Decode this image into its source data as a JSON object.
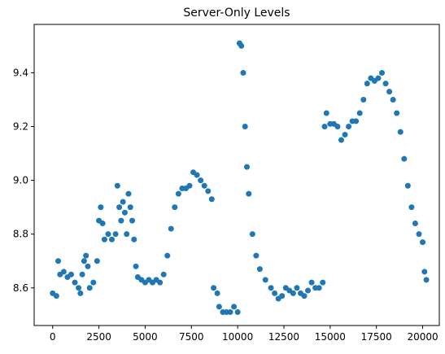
{
  "chart_data": {
    "type": "scatter",
    "title": "Server-Only Levels",
    "x": [
      0,
      200,
      300,
      400,
      600,
      800,
      1000,
      1200,
      1400,
      1500,
      1600,
      1700,
      1800,
      1900,
      2000,
      2200,
      2400,
      2500,
      2600,
      2700,
      2800,
      3000,
      3200,
      3400,
      3500,
      3600,
      3700,
      3800,
      3900,
      4000,
      4100,
      4200,
      4300,
      4400,
      4500,
      4600,
      4800,
      5000,
      5200,
      5400,
      5600,
      5800,
      6000,
      6200,
      6400,
      6600,
      6800,
      7000,
      7200,
      7400,
      7600,
      7800,
      8000,
      8200,
      8400,
      8600,
      8700,
      8900,
      9000,
      9200,
      9400,
      9600,
      9800,
      10000,
      10100,
      10200,
      10300,
      10400,
      10500,
      10600,
      10800,
      11000,
      11200,
      11500,
      11800,
      12000,
      12200,
      12400,
      12600,
      12800,
      13000,
      13200,
      13400,
      13600,
      13800,
      14000,
      14200,
      14400,
      14600,
      14700,
      14800,
      15000,
      15200,
      15400,
      15600,
      15800,
      16000,
      16200,
      16400,
      16600,
      16800,
      17000,
      17200,
      17400,
      17600,
      17800,
      18000,
      18200,
      18400,
      18600,
      18800,
      19000,
      19200,
      19400,
      19600,
      19800,
      20000,
      20100,
      20200
    ],
    "values": [
      8.58,
      8.57,
      8.7,
      8.65,
      8.66,
      8.64,
      8.65,
      8.62,
      8.6,
      8.58,
      8.65,
      8.7,
      8.72,
      8.68,
      8.6,
      8.62,
      8.7,
      8.85,
      8.9,
      8.84,
      8.78,
      8.8,
      8.78,
      8.8,
      8.98,
      8.9,
      8.85,
      8.92,
      8.88,
      8.8,
      8.95,
      8.9,
      8.85,
      8.78,
      8.68,
      8.64,
      8.63,
      8.62,
      8.63,
      8.62,
      8.63,
      8.62,
      8.65,
      8.72,
      8.82,
      8.9,
      8.95,
      8.97,
      8.97,
      8.98,
      9.03,
      9.02,
      9.0,
      8.98,
      8.96,
      8.93,
      8.6,
      8.58,
      8.53,
      8.51,
      8.51,
      8.51,
      8.53,
      8.51,
      9.51,
      9.5,
      9.4,
      9.2,
      9.05,
      8.95,
      8.8,
      8.72,
      8.67,
      8.63,
      8.6,
      8.58,
      8.56,
      8.57,
      8.6,
      8.59,
      8.58,
      8.6,
      8.58,
      8.57,
      8.59,
      8.62,
      8.6,
      8.6,
      8.62,
      9.2,
      9.25,
      9.21,
      9.21,
      9.2,
      9.15,
      9.17,
      9.2,
      9.22,
      9.22,
      9.25,
      9.3,
      9.36,
      9.38,
      9.37,
      9.38,
      9.4,
      9.36,
      9.33,
      9.3,
      9.25,
      9.18,
      9.08,
      8.98,
      8.9,
      8.84,
      8.8,
      8.77,
      8.66,
      8.63
    ],
    "color": "#1f77b4",
    "xlim": [
      -1000,
      20900
    ],
    "ylim": [
      8.46,
      9.58
    ],
    "xticks": [
      0,
      2500,
      5000,
      7500,
      10000,
      12500,
      15000,
      17500,
      20000
    ],
    "yticks": [
      8.6,
      8.8,
      {
        "value": 9,
        "label": "9.0"
      },
      9.2,
      9.4
    ]
  }
}
